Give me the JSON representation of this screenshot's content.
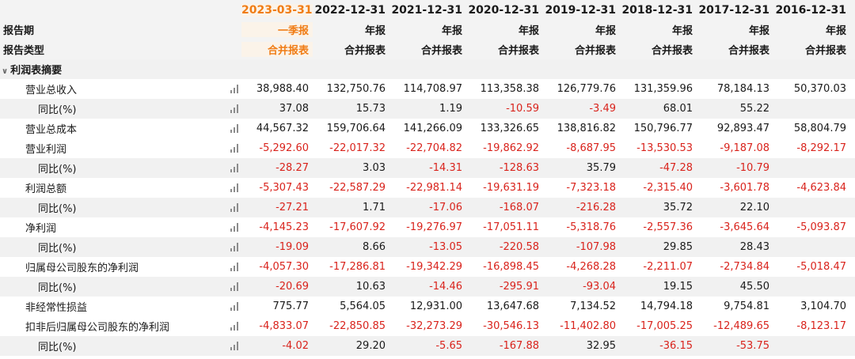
{
  "header": {
    "period_label": "报告期",
    "type_label": "报告类型",
    "dates": [
      "2023-03-31",
      "2022-12-31",
      "2021-12-31",
      "2020-12-31",
      "2019-12-31",
      "2018-12-31",
      "2017-12-31",
      "2016-12-31"
    ],
    "periods": [
      "一季报",
      "年报",
      "年报",
      "年报",
      "年报",
      "年报",
      "年报",
      "年报"
    ],
    "types": [
      "合并报表",
      "合并报表",
      "合并报表",
      "合并报表",
      "合并报表",
      "合并报表",
      "合并报表",
      "合并报表"
    ]
  },
  "section": {
    "label": "利润表摘要"
  },
  "rows": [
    {
      "label": "营业总收入",
      "level": "sub",
      "shade": false,
      "values": [
        "38,988.40",
        "132,750.76",
        "114,708.97",
        "113,358.38",
        "126,779.76",
        "131,359.96",
        "78,184.13",
        "50,370.03"
      ]
    },
    {
      "label": "同比(%)",
      "level": "subsub",
      "shade": true,
      "values": [
        "37.08",
        "15.73",
        "1.19",
        "-10.59",
        "-3.49",
        "68.01",
        "55.22",
        ""
      ]
    },
    {
      "label": "营业总成本",
      "level": "sub",
      "shade": false,
      "values": [
        "44,567.32",
        "159,706.64",
        "141,266.09",
        "133,326.65",
        "138,816.82",
        "150,796.77",
        "92,893.47",
        "58,804.79"
      ]
    },
    {
      "label": "营业利润",
      "level": "sub",
      "shade": false,
      "values": [
        "-5,292.60",
        "-22,017.32",
        "-22,704.82",
        "-19,862.92",
        "-8,687.95",
        "-13,530.53",
        "-9,187.08",
        "-8,292.17"
      ]
    },
    {
      "label": "同比(%)",
      "level": "subsub",
      "shade": true,
      "values": [
        "-28.27",
        "3.03",
        "-14.31",
        "-128.63",
        "35.79",
        "-47.28",
        "-10.79",
        ""
      ]
    },
    {
      "label": "利润总额",
      "level": "sub",
      "shade": false,
      "values": [
        "-5,307.43",
        "-22,587.29",
        "-22,981.14",
        "-19,631.19",
        "-7,323.18",
        "-2,315.40",
        "-3,601.78",
        "-4,623.84"
      ]
    },
    {
      "label": "同比(%)",
      "level": "subsub",
      "shade": true,
      "values": [
        "-27.21",
        "1.71",
        "-17.06",
        "-168.07",
        "-216.28",
        "35.72",
        "22.10",
        ""
      ]
    },
    {
      "label": "净利润",
      "level": "sub",
      "shade": false,
      "values": [
        "-4,145.23",
        "-17,607.92",
        "-19,276.97",
        "-17,051.11",
        "-5,318.76",
        "-2,557.36",
        "-3,645.64",
        "-5,093.87"
      ]
    },
    {
      "label": "同比(%)",
      "level": "subsub",
      "shade": true,
      "values": [
        "-19.09",
        "8.66",
        "-13.05",
        "-220.58",
        "-107.98",
        "29.85",
        "28.43",
        ""
      ]
    },
    {
      "label": "归属母公司股东的净利润",
      "level": "sub",
      "shade": false,
      "values": [
        "-4,057.30",
        "-17,286.81",
        "-19,342.29",
        "-16,898.45",
        "-4,268.28",
        "-2,211.07",
        "-2,734.84",
        "-5,018.47"
      ]
    },
    {
      "label": "同比(%)",
      "level": "subsub",
      "shade": true,
      "values": [
        "-20.69",
        "10.63",
        "-14.46",
        "-295.91",
        "-93.04",
        "19.15",
        "45.50",
        ""
      ]
    },
    {
      "label": "非经常性损益",
      "level": "sub",
      "shade": false,
      "values": [
        "775.77",
        "5,564.05",
        "12,931.00",
        "13,647.68",
        "7,134.52",
        "14,794.18",
        "9,754.81",
        "3,104.70"
      ]
    },
    {
      "label": "扣非后归属母公司股东的净利润",
      "level": "sub",
      "shade": false,
      "values": [
        "-4,833.07",
        "-22,850.85",
        "-32,273.29",
        "-30,546.13",
        "-11,402.80",
        "-17,005.25",
        "-12,489.65",
        "-8,123.17"
      ]
    },
    {
      "label": "同比(%)",
      "level": "subsub",
      "shade": true,
      "values": [
        "-4.02",
        "29.20",
        "-5.65",
        "-167.88",
        "32.95",
        "-36.15",
        "-53.75",
        ""
      ]
    }
  ],
  "icons": {
    "row_chart": "bar-chart-icon",
    "collapse": "caret-down-icon"
  },
  "colors": {
    "accent": "#f07c15",
    "negative": "#d9231c",
    "header_bg": "#f3f3f3",
    "shade_bg": "#f1f1f1"
  }
}
